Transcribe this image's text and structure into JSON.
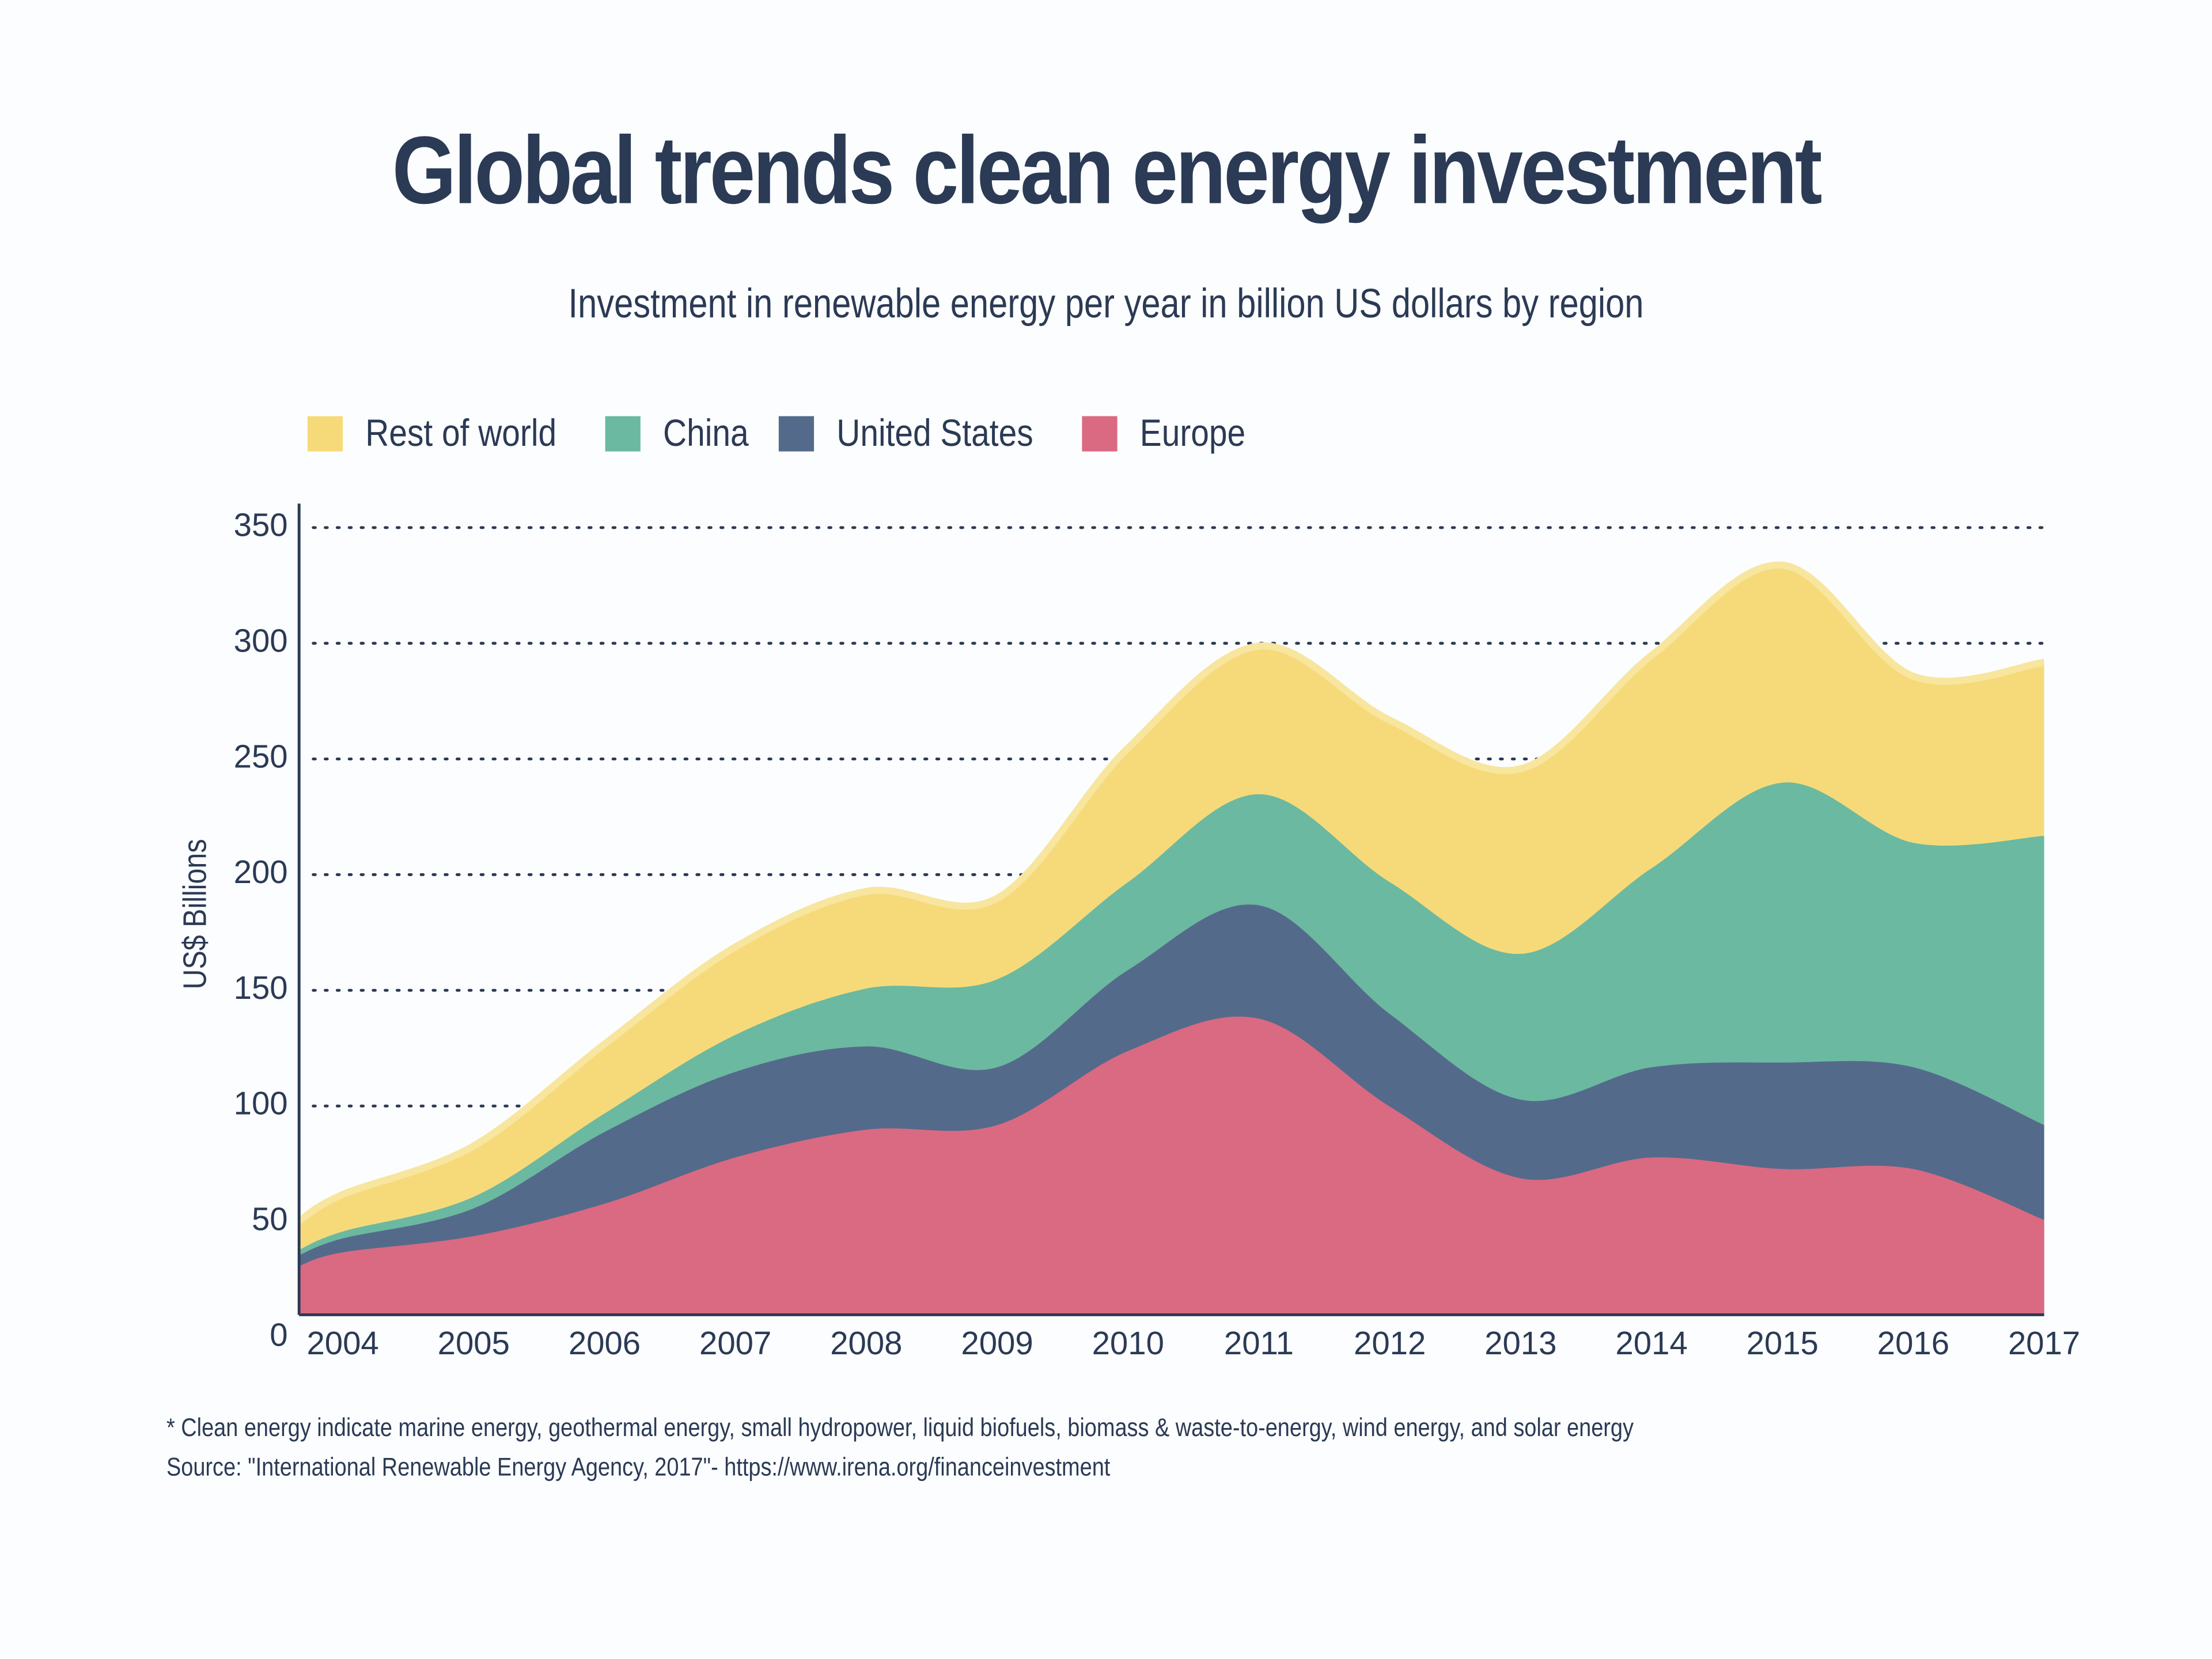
{
  "title": "Global trends clean energy investment",
  "subtitle": "Investment in renewable energy per year in billion US dollars by region",
  "footnotes": [
    "* Clean energy indicate marine energy, geothermal energy, small hydropower, liquid biofuels, biomass & waste-to-energy, wind energy, and solar energy",
    "Source: \"International Renewable Energy Agency, 2017\"- https://www.irena.org/financeinvestment"
  ],
  "legend": [
    {
      "label": "Rest of world",
      "color": "#f6da7a"
    },
    {
      "label": "China",
      "color": "#6bb9a0"
    },
    {
      "label": "United States",
      "color": "#546a8b"
    },
    {
      "label": "Europe",
      "color": "#d96a82"
    }
  ],
  "chart_data": {
    "type": "area",
    "stacked": true,
    "smooth": true,
    "title": "Global trends clean energy investment",
    "subtitle": "Investment in renewable energy per year in billion US dollars by region",
    "ylabel": "US$ Billions",
    "xlabel": "",
    "ylim": [
      0,
      350
    ],
    "yticks": [
      0,
      50,
      100,
      150,
      200,
      250,
      300,
      350
    ],
    "grid": "horizontal dotted",
    "legend_position": "top-left",
    "x": [
      "2004",
      "2005",
      "2006",
      "2007",
      "2008",
      "2009",
      "2010",
      "2011",
      "2012",
      "2013",
      "2014",
      "2015",
      "2016",
      "2017"
    ],
    "series": [
      {
        "name": "Europe",
        "color": "#d96a82",
        "values": [
          27,
          34,
          48,
          68,
          80,
          82,
          114,
          128,
          90,
          59,
          68,
          63,
          63,
          41
        ]
      },
      {
        "name": "United States",
        "color": "#546a8b",
        "values": [
          6,
          12,
          31,
          37,
          36,
          25,
          35,
          49,
          40,
          34,
          39,
          46,
          44,
          41
        ]
      },
      {
        "name": "China",
        "color": "#6bb9a0",
        "values": [
          3,
          5,
          8,
          16,
          25,
          38,
          38,
          48,
          57,
          63,
          86,
          121,
          97,
          125
        ]
      },
      {
        "name": "Rest of world",
        "color": "#f6da7a",
        "values": [
          16,
          22,
          30,
          38,
          42,
          35,
          58,
          64,
          70,
          80,
          92,
          94,
          72,
          75
        ]
      }
    ]
  }
}
